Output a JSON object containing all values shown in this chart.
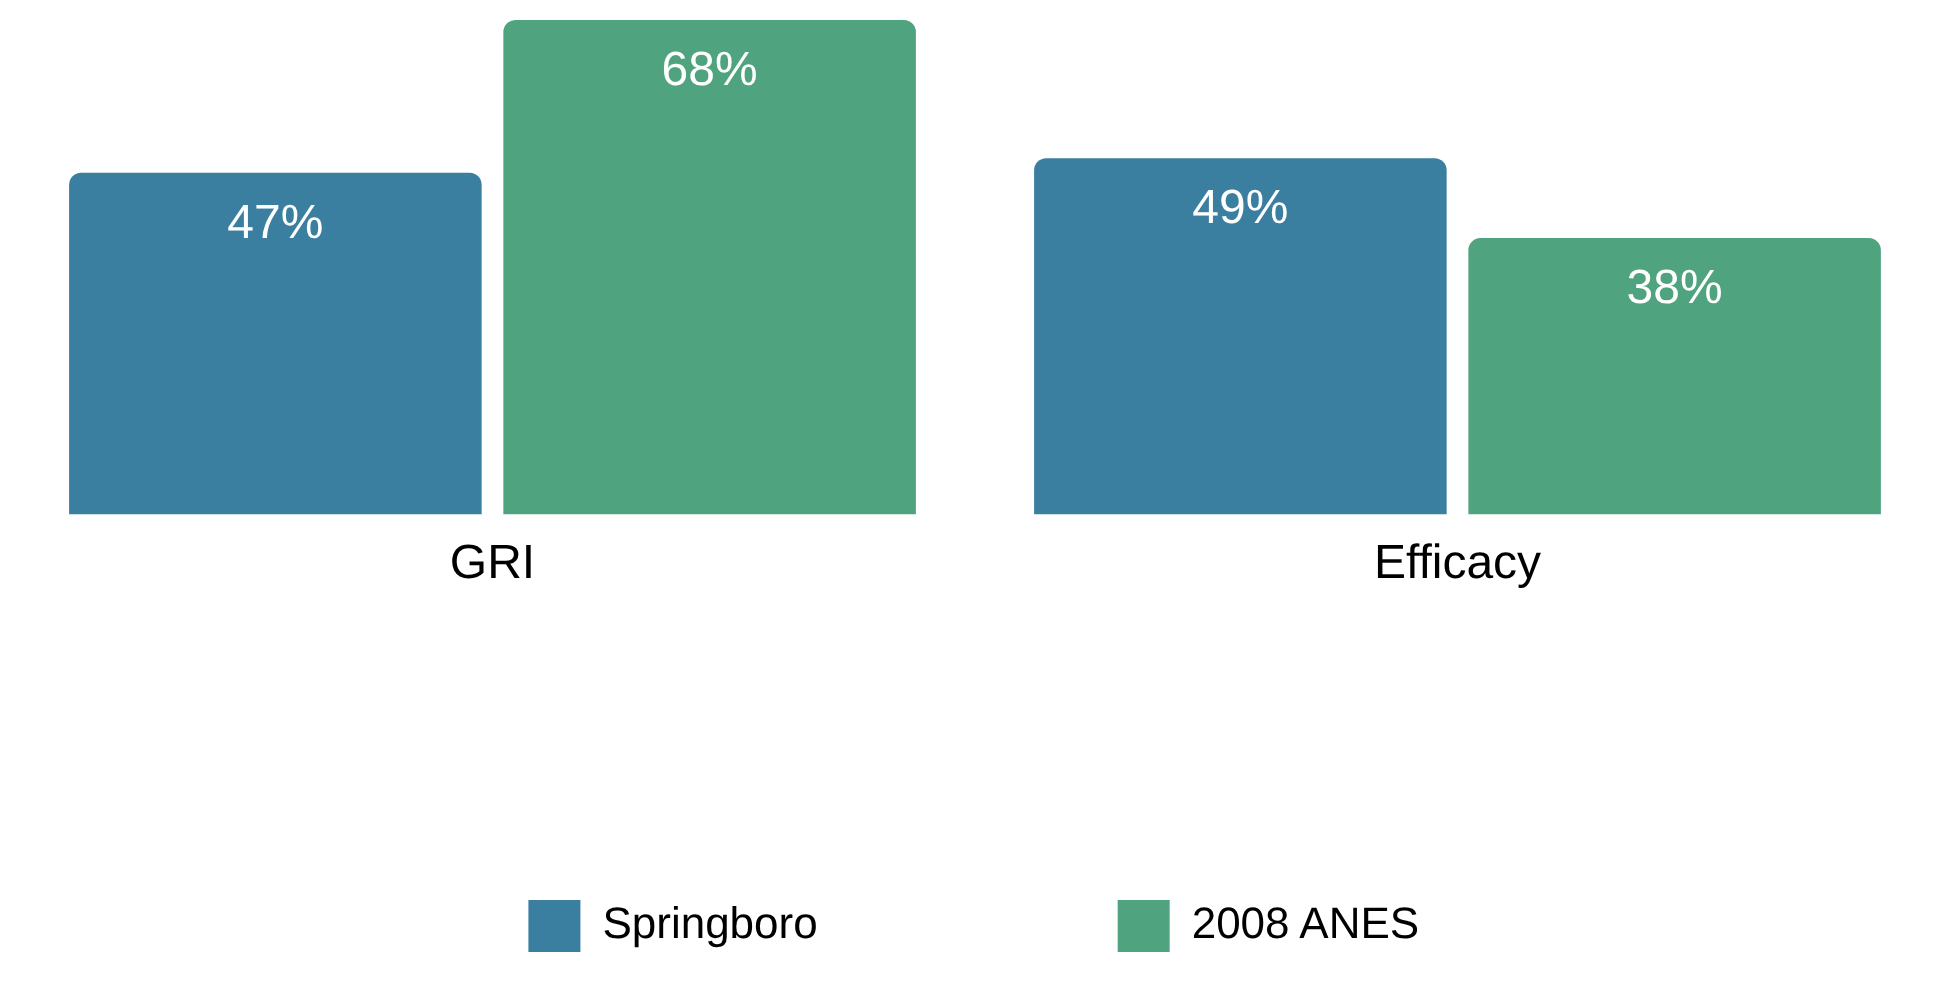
{
  "chart_data": {
    "type": "bar",
    "categories": [
      "GRI",
      "Efficacy"
    ],
    "series": [
      {
        "name": "Springboro",
        "color": "#3a7ea0",
        "values": [
          47,
          49
        ],
        "value_labels": [
          "47%",
          "49%"
        ]
      },
      {
        "name": "2008 ANES",
        "color": "#4fa47f",
        "values": [
          68,
          38
        ],
        "value_labels": [
          "68%",
          "38%"
        ]
      }
    ],
    "legend": "bottom"
  }
}
